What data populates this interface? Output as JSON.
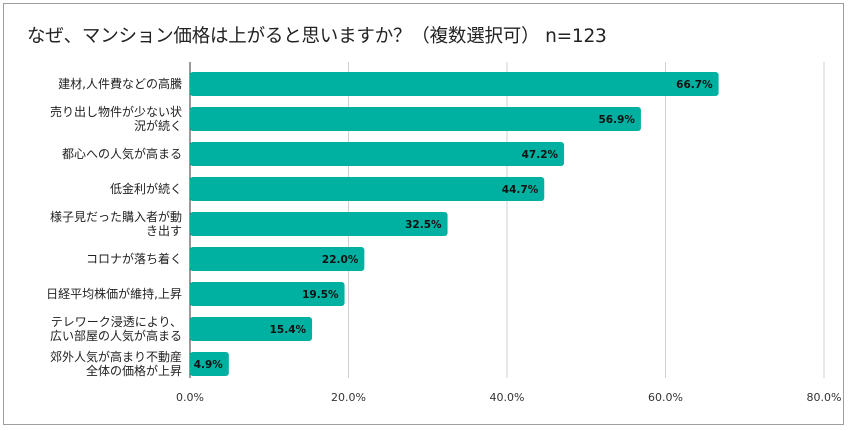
{
  "chart_data": {
    "type": "bar",
    "orientation": "horizontal",
    "title": "なぜ、マンション価格は上がると思いますか？（複数選択可） n=123",
    "categories": [
      [
        "建材,人件費などの高騰"
      ],
      [
        "売り出し物件が少ない状",
        "況が続く"
      ],
      [
        "都心への人気が高まる"
      ],
      [
        "低金利が続く"
      ],
      [
        "様子見だった購入者が動",
        "き出す"
      ],
      [
        "コロナが落ち着く"
      ],
      [
        "日経平均株価が維持,上昇"
      ],
      [
        "テレワーク浸透により、",
        "広い部屋の人気が高まる"
      ],
      [
        "郊外人気が高まり不動産",
        "全体の価格が上昇"
      ]
    ],
    "values": [
      66.7,
      56.9,
      47.2,
      44.7,
      32.5,
      22.0,
      19.5,
      15.4,
      4.9
    ],
    "value_labels": [
      "66.7%",
      "56.9%",
      "47.2%",
      "44.7%",
      "32.5%",
      "22.0%",
      "19.5%",
      "15.4%",
      "4.9%"
    ],
    "xlim": [
      0,
      80
    ],
    "x_ticks": [
      0,
      20,
      40,
      60,
      80
    ],
    "x_tick_labels": [
      "0.0%",
      "20.0%",
      "40.0%",
      "60.0%",
      "80.0%"
    ],
    "grid": true,
    "bar_color": "#00b0a0",
    "xlabel": "",
    "ylabel": ""
  }
}
